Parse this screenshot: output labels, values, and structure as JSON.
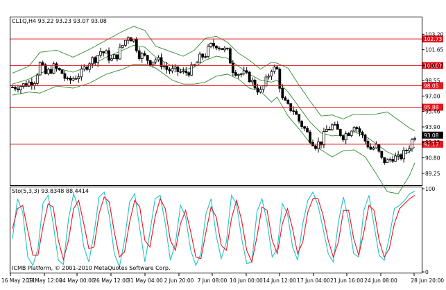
{
  "chart_title": "CL1Q,H4  93.22 93.23 93.07 93.08",
  "stoch_title": "Sto(5,3,3) 93.8348 88.4414",
  "copyright": "ICMB Platform, © 2001-2010 MetaQuotes Software Corp.",
  "colors": {
    "level": "#e8141e",
    "bands": "#2e8b2e",
    "k_line": "#20c2c8",
    "d_line": "#e8141e",
    "candles": "#000000"
  },
  "chart_data": [
    {
      "type": "candlestick",
      "symbol": "CL1Q",
      "timeframe": "H4",
      "ohlc_last": {
        "open": 93.22,
        "high": 93.23,
        "low": 93.07,
        "close": 93.08
      },
      "current_price": "93.08",
      "price_ticks": [
        "103.20",
        "101.65",
        "100.07",
        "98.55",
        "97.00",
        "95.46",
        "93.90",
        "92.35",
        "90.80",
        "89.25"
      ],
      "levels": [
        "102.73",
        "100.07",
        "98.05",
        "95.88",
        "92.17"
      ],
      "time_ticks": [
        "16 May 2011",
        "19 May 12:00",
        "24 May 00:00",
        "26 May 12:00",
        "31 May 04:00",
        "2 Jun 20:00",
        "7 Jun 08:00",
        "10 Jun 00:00",
        "14 Jun 12:00",
        "17 Jun 04:00",
        "21 Jun 16:00",
        "24 Jun 08:00",
        "28 Jun 20:00"
      ],
      "close_path": [
        [
          0,
          97.9
        ],
        [
          4,
          98.1
        ],
        [
          8,
          98.6
        ],
        [
          10,
          100.2
        ],
        [
          12,
          99.2
        ],
        [
          15,
          99.9
        ],
        [
          18,
          99.3
        ],
        [
          20,
          98.4
        ],
        [
          22,
          98.8
        ],
        [
          25,
          99.3
        ],
        [
          28,
          100.5
        ],
        [
          30,
          100.8
        ],
        [
          32,
          101.5
        ],
        [
          34,
          101.2
        ],
        [
          36,
          100.6
        ],
        [
          38,
          101.1
        ],
        [
          40,
          102.1
        ],
        [
          42,
          103.1
        ],
        [
          44,
          102.6
        ],
        [
          46,
          101.2
        ],
        [
          48,
          100.9
        ],
        [
          50,
          100.5
        ],
        [
          52,
          100.7
        ],
        [
          54,
          100.3
        ],
        [
          56,
          99.7
        ],
        [
          58,
          99.5
        ],
        [
          60,
          99.5
        ],
        [
          62,
          99.3
        ],
        [
          64,
          99.5
        ],
        [
          66,
          99.9
        ],
        [
          68,
          100.8
        ],
        [
          70,
          101.2
        ],
        [
          72,
          102.0
        ],
        [
          74,
          102.2
        ],
        [
          76,
          101.8
        ],
        [
          78,
          101.4
        ],
        [
          80,
          99.7
        ],
        [
          82,
          99.3
        ],
        [
          84,
          99.2
        ],
        [
          86,
          98.8
        ],
        [
          88,
          98.0
        ],
        [
          90,
          97.4
        ],
        [
          92,
          98.5
        ],
        [
          94,
          99.8
        ],
        [
          96,
          99.6
        ],
        [
          98,
          96.6
        ],
        [
          100,
          95.9
        ],
        [
          102,
          95.6
        ],
        [
          104,
          94.5
        ],
        [
          106,
          93.7
        ],
        [
          108,
          92.8
        ],
        [
          110,
          92.1
        ],
        [
          112,
          92.4
        ],
        [
          114,
          93.6
        ],
        [
          116,
          94.0
        ],
        [
          118,
          93.5
        ],
        [
          120,
          93.0
        ],
        [
          122,
          93.4
        ],
        [
          124,
          94.2
        ],
        [
          126,
          93.4
        ],
        [
          128,
          92.5
        ],
        [
          130,
          91.7
        ],
        [
          132,
          91.9
        ],
        [
          134,
          90.6
        ],
        [
          136,
          90.4
        ],
        [
          138,
          90.9
        ],
        [
          140,
          90.7
        ],
        [
          142,
          91.2
        ],
        [
          144,
          92.0
        ],
        [
          146,
          93.1
        ]
      ],
      "bb_upper": [
        [
          0,
          99.3
        ],
        [
          6,
          100.0
        ],
        [
          10,
          101.4
        ],
        [
          16,
          101.6
        ],
        [
          22,
          100.9
        ],
        [
          28,
          101.7
        ],
        [
          34,
          102.6
        ],
        [
          40,
          103.5
        ],
        [
          44,
          104.0
        ],
        [
          48,
          103.6
        ],
        [
          52,
          102.0
        ],
        [
          58,
          101.4
        ],
        [
          62,
          101.0
        ],
        [
          66,
          101.6
        ],
        [
          70,
          102.8
        ],
        [
          74,
          103.0
        ],
        [
          78,
          102.4
        ],
        [
          82,
          101.3
        ],
        [
          86,
          100.6
        ],
        [
          90,
          99.7
        ],
        [
          94,
          100.4
        ],
        [
          96,
          100.3
        ],
        [
          100,
          99.8
        ],
        [
          104,
          98.1
        ],
        [
          108,
          96.5
        ],
        [
          112,
          95.0
        ],
        [
          116,
          95.1
        ],
        [
          120,
          94.7
        ],
        [
          124,
          95.2
        ],
        [
          128,
          95.1
        ],
        [
          132,
          95.2
        ],
        [
          136,
          95.4
        ],
        [
          140,
          94.6
        ],
        [
          144,
          93.8
        ],
        [
          146,
          93.5
        ]
      ],
      "bb_middle": [
        [
          0,
          98.2
        ],
        [
          6,
          98.7
        ],
        [
          10,
          99.3
        ],
        [
          16,
          99.8
        ],
        [
          22,
          99.4
        ],
        [
          28,
          100.0
        ],
        [
          34,
          100.9
        ],
        [
          40,
          101.6
        ],
        [
          44,
          102.1
        ],
        [
          48,
          101.9
        ],
        [
          52,
          100.9
        ],
        [
          58,
          100.0
        ],
        [
          62,
          99.6
        ],
        [
          66,
          99.9
        ],
        [
          70,
          100.6
        ],
        [
          74,
          101.0
        ],
        [
          78,
          100.8
        ],
        [
          82,
          100.0
        ],
        [
          86,
          99.2
        ],
        [
          90,
          98.6
        ],
        [
          94,
          98.4
        ],
        [
          96,
          98.6
        ],
        [
          100,
          97.4
        ],
        [
          104,
          95.9
        ],
        [
          108,
          94.4
        ],
        [
          112,
          93.3
        ],
        [
          116,
          93.0
        ],
        [
          120,
          93.1
        ],
        [
          124,
          93.4
        ],
        [
          128,
          93.0
        ],
        [
          132,
          92.2
        ],
        [
          136,
          91.4
        ],
        [
          140,
          90.9
        ],
        [
          144,
          91.4
        ],
        [
          146,
          91.9
        ]
      ],
      "bb_lower": [
        [
          0,
          97.1
        ],
        [
          6,
          97.4
        ],
        [
          10,
          97.3
        ],
        [
          16,
          98.0
        ],
        [
          22,
          97.8
        ],
        [
          28,
          98.3
        ],
        [
          34,
          99.2
        ],
        [
          40,
          99.7
        ],
        [
          44,
          100.2
        ],
        [
          48,
          100.2
        ],
        [
          52,
          99.8
        ],
        [
          58,
          98.6
        ],
        [
          62,
          98.2
        ],
        [
          66,
          98.2
        ],
        [
          70,
          98.4
        ],
        [
          74,
          99.0
        ],
        [
          78,
          99.2
        ],
        [
          82,
          98.7
        ],
        [
          86,
          97.8
        ],
        [
          90,
          97.5
        ],
        [
          94,
          96.4
        ],
        [
          96,
          96.9
        ],
        [
          100,
          95.0
        ],
        [
          104,
          93.7
        ],
        [
          108,
          92.3
        ],
        [
          112,
          91.6
        ],
        [
          116,
          90.9
        ],
        [
          120,
          91.5
        ],
        [
          124,
          91.6
        ],
        [
          128,
          90.9
        ],
        [
          132,
          89.2
        ],
        [
          136,
          87.4
        ],
        [
          140,
          87.2
        ],
        [
          144,
          89.0
        ],
        [
          146,
          90.3
        ]
      ]
    },
    {
      "type": "line",
      "name": "Sto(5,3,3)",
      "y_ticks": [
        "100",
        "0"
      ],
      "ylim": [
        0,
        100
      ],
      "series": [
        {
          "name": "93.8348",
          "values": [
            40,
            88,
            72,
            18,
            8,
            28,
            83,
            92,
            58,
            14,
            9,
            64,
            94,
            76,
            30,
            12,
            46,
            90,
            96,
            68,
            22,
            6,
            38,
            84,
            94,
            52,
            12,
            48,
            88,
            92,
            58,
            14,
            34,
            80,
            66,
            26,
            8,
            22,
            70,
            88,
            44,
            16,
            36,
            92,
            82,
            40,
            10,
            12,
            72,
            88,
            60,
            18,
            28,
            82,
            70,
            30,
            14,
            58,
            86,
            96,
            80,
            52,
            22,
            12,
            60,
            90,
            62,
            22,
            18,
            74,
            92,
            56,
            20,
            14,
            42,
            76,
            80,
            86,
            94,
            97
          ]
        },
        {
          "name": "88.4414",
          "values": [
            52,
            76,
            80,
            50,
            20,
            20,
            55,
            82,
            78,
            38,
            15,
            38,
            76,
            86,
            58,
            28,
            30,
            70,
            90,
            84,
            48,
            18,
            24,
            60,
            86,
            78,
            38,
            30,
            66,
            88,
            76,
            38,
            26,
            58,
            74,
            48,
            18,
            16,
            48,
            78,
            66,
            32,
            26,
            64,
            86,
            62,
            26,
            12,
            42,
            78,
            74,
            38,
            22,
            58,
            76,
            52,
            22,
            36,
            72,
            88,
            88,
            68,
            38,
            18,
            36,
            74,
            74,
            40,
            20,
            48,
            80,
            74,
            38,
            18,
            28,
            58,
            76,
            82,
            88,
            92
          ]
        }
      ]
    }
  ]
}
